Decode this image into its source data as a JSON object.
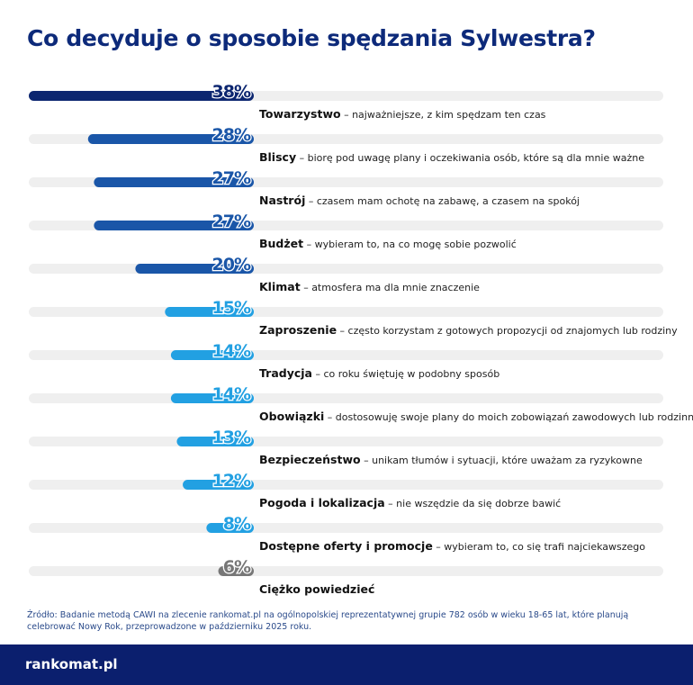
{
  "title": "Co decyduje o sposobie spędzania Sylwestra?",
  "chart_data": {
    "type": "bar",
    "orientation": "horizontal",
    "xlim": [
      0,
      100
    ],
    "unit": "%",
    "categories": [
      {
        "name": "Towarzystwo",
        "desc": " – najważniejsze, z kim spędzam ten czas"
      },
      {
        "name": "Bliscy",
        "desc": " – biorę pod uwagę plany i oczekiwania osób, które są dla mnie ważne"
      },
      {
        "name": "Nastrój",
        "desc": " – czasem mam ochotę na zabawę, a czasem na spokój"
      },
      {
        "name": "Budżet",
        "desc": " – wybieram to, na co mogę sobie pozwolić"
      },
      {
        "name": "Klimat",
        "desc": " – atmosfera ma dla mnie znaczenie"
      },
      {
        "name": "Zaproszenie",
        "desc": " – często korzystam z gotowych propozycji od znajomych lub rodziny"
      },
      {
        "name": "Tradycja",
        "desc": " – co roku świętuję w podobny sposób"
      },
      {
        "name": "Obowiązki",
        "desc": " – dostosowuję swoje plany do moich zobowiązań zawodowych lub rodzinnych"
      },
      {
        "name": "Bezpieczeństwo",
        "desc": " – unikam tłumów i sytuacji, które uważam za ryzykowne"
      },
      {
        "name": "Pogoda i lokalizacja",
        "desc": " – nie wszędzie da się dobrze bawić"
      },
      {
        "name": "Dostępne oferty i promocje",
        "desc": " – wybieram to, co się trafi najciekawszego"
      },
      {
        "name": "Ciężko powiedzieć",
        "desc": ""
      }
    ],
    "values": [
      38,
      28,
      27,
      27,
      20,
      15,
      14,
      14,
      13,
      12,
      8,
      6
    ],
    "value_labels": [
      "38%",
      "28%",
      "27%",
      "27%",
      "20%",
      "15%",
      "14%",
      "14%",
      "13%",
      "12%",
      "8%",
      "6%"
    ],
    "bar_colors": [
      "#0c2670",
      "#1a56a8",
      "#1a56a8",
      "#1a56a8",
      "#1a56a8",
      "#22a0e2",
      "#22a0e2",
      "#22a0e2",
      "#22a0e2",
      "#22a0e2",
      "#22a0e2",
      "#777777"
    ],
    "track_color": "#efefef"
  },
  "source": "Źródło: Badanie metodą CAWI na zlecenie rankomat.pl na ogólnopolskiej reprezentatywnej grupie 782 osób w wieku 18-65 lat, które planują celebrować Nowy Rok, przeprowadzone w październiku 2025 roku.",
  "footer": {
    "logo": "rankomat.pl",
    "background": "#0b1f6e"
  }
}
